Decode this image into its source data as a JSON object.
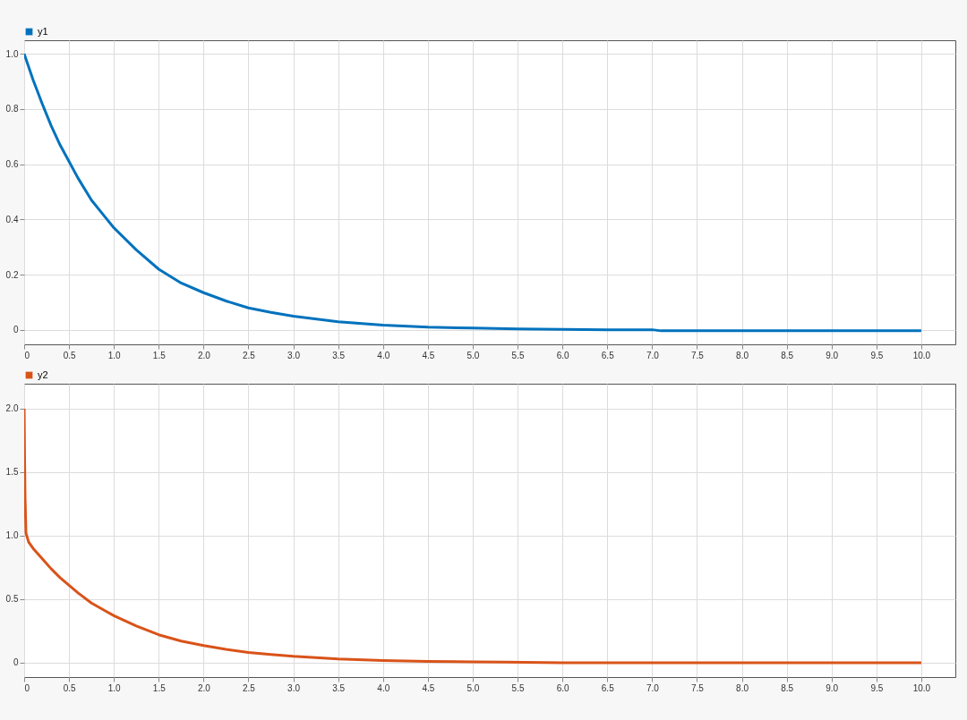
{
  "chart_data": [
    {
      "type": "line",
      "xlim": [
        0,
        10.38
      ],
      "ylim": [
        -0.052,
        1.049
      ],
      "grid": true,
      "legend": "top left",
      "xticks": [
        0,
        0.5,
        {
          "value": 1,
          "label": "1.0"
        },
        1.5,
        {
          "value": 2,
          "label": "2.0"
        },
        2.5,
        {
          "value": 3,
          "label": "3.0"
        },
        3.5,
        {
          "value": 4,
          "label": "4.0"
        },
        4.5,
        {
          "value": 5,
          "label": "5.0"
        },
        5.5,
        {
          "value": 6,
          "label": "6.0"
        },
        6.5,
        {
          "value": 7,
          "label": "7.0"
        },
        7.5,
        {
          "value": 8,
          "label": "8.0"
        },
        8.5,
        {
          "value": 9,
          "label": "9.0"
        },
        9.5,
        {
          "value": 10,
          "label": "10.0"
        }
      ],
      "yticks": [
        {
          "value": 0,
          "label": "0"
        },
        0.2,
        0.4,
        0.6,
        0.8,
        {
          "value": 1,
          "label": "1.0"
        }
      ],
      "series": [
        {
          "name": "y1",
          "color": "#0072bd",
          "x": [
            0,
            0.1,
            0.2,
            0.3,
            0.4,
            0.5,
            0.6,
            0.75,
            0.9,
            1.0,
            1.25,
            1.5,
            1.75,
            2.0,
            2.25,
            2.5,
            2.75,
            3.0,
            3.5,
            4.0,
            4.5,
            5.0,
            5.5,
            6.0,
            6.5,
            7.0,
            7.1,
            8.0,
            9.0,
            10.0
          ],
          "values": [
            1.0,
            0.905,
            0.82,
            0.74,
            0.67,
            0.61,
            0.55,
            0.47,
            0.41,
            0.37,
            0.29,
            0.22,
            0.17,
            0.135,
            0.105,
            0.08,
            0.064,
            0.05,
            0.03,
            0.018,
            0.01,
            0.007,
            0.004,
            0.002,
            0.001,
            0.001,
            -0.003,
            -0.003,
            -0.003,
            -0.003
          ]
        }
      ]
    },
    {
      "type": "line",
      "xlim": [
        0,
        10.38
      ],
      "ylim": [
        -0.113,
        2.197
      ],
      "grid": true,
      "legend": "top left",
      "xticks": [
        0,
        0.5,
        {
          "value": 1,
          "label": "1.0"
        },
        1.5,
        {
          "value": 2,
          "label": "2.0"
        },
        2.5,
        {
          "value": 3,
          "label": "3.0"
        },
        3.5,
        {
          "value": 4,
          "label": "4.0"
        },
        4.5,
        {
          "value": 5,
          "label": "5.0"
        },
        5.5,
        {
          "value": 6,
          "label": "6.0"
        },
        6.5,
        {
          "value": 7,
          "label": "7.0"
        },
        7.5,
        {
          "value": 8,
          "label": "8.0"
        },
        8.5,
        {
          "value": 9,
          "label": "9.0"
        },
        9.5,
        {
          "value": 10,
          "label": "10.0"
        }
      ],
      "yticks": [
        {
          "value": 0,
          "label": "0"
        },
        0.5,
        {
          "value": 1,
          "label": "1.0"
        },
        1.5,
        {
          "value": 2,
          "label": "2.0"
        }
      ],
      "series": [
        {
          "name": "y2",
          "color": "#d95319",
          "x": [
            0,
            0.005,
            0.01,
            0.02,
            0.05,
            0.1,
            0.2,
            0.3,
            0.4,
            0.5,
            0.6,
            0.75,
            0.9,
            1.0,
            1.25,
            1.5,
            1.75,
            2.0,
            2.25,
            2.5,
            2.75,
            3.0,
            3.5,
            4.0,
            4.5,
            5.0,
            5.35,
            6.0,
            7.0,
            8.0,
            9.0,
            10.0
          ],
          "values": [
            2.0,
            1.6,
            1.3,
            1.02,
            0.95,
            0.9,
            0.82,
            0.74,
            0.67,
            0.61,
            0.55,
            0.47,
            0.41,
            0.37,
            0.29,
            0.22,
            0.17,
            0.135,
            0.105,
            0.08,
            0.064,
            0.05,
            0.03,
            0.018,
            0.01,
            0.007,
            0.005,
            0.0,
            0.0,
            0.0,
            0.0,
            0.0
          ]
        }
      ]
    }
  ]
}
